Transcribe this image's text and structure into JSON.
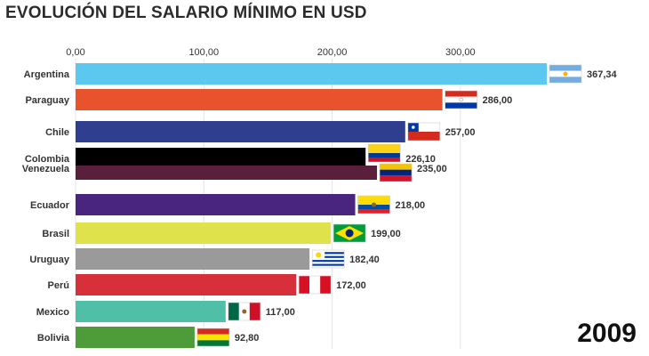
{
  "header": {
    "title": "EVOLUCIÓN DEL SALARIO MÍNIMO EN USD"
  },
  "year_label": "2009",
  "chart_data": {
    "type": "bar",
    "orientation": "horizontal",
    "title": "EVOLUCIÓN DEL SALARIO MÍNIMO EN USD",
    "xlabel": "",
    "ylabel": "",
    "xlim": [
      0,
      367.34
    ],
    "ticks": [
      0,
      100,
      200,
      300
    ],
    "tick_labels": [
      "0,00",
      "100,00",
      "200,00",
      "300,00"
    ],
    "grid": true,
    "categories": [
      "Argentina",
      "Paraguay",
      "Chile",
      "Colombia",
      "Venezuela",
      "Ecuador",
      "Brasil",
      "Uruguay",
      "Perú",
      "Mexico",
      "Bolivia"
    ],
    "values": [
      367.34,
      286.0,
      257.0,
      226.1,
      235.0,
      218.0,
      199.0,
      182.4,
      172.0,
      117.0,
      92.8
    ],
    "value_labels": [
      "367,34",
      "286,00",
      "257,00",
      "226,10",
      "235,00",
      "218,00",
      "199,00",
      "182,40",
      "172,00",
      "117,00",
      "92,80"
    ],
    "colors": [
      "#5cc8ef",
      "#e8522c",
      "#2f3e8f",
      "#000000",
      "#5a1f3a",
      "#4a2580",
      "#dfe24a",
      "#9a9a9a",
      "#d8303a",
      "#4fbfa8",
      "#4e9b3a"
    ],
    "flags": [
      "flag-argentina-icon",
      "flag-paraguay-icon",
      "flag-chile-icon",
      "flag-colombia-icon",
      "flag-venezuela-icon",
      "flag-ecuador-icon",
      "flag-brasil-icon",
      "flag-uruguay-icon",
      "flag-peru-icon",
      "flag-mexico-icon",
      "flag-bolivia-icon"
    ]
  }
}
